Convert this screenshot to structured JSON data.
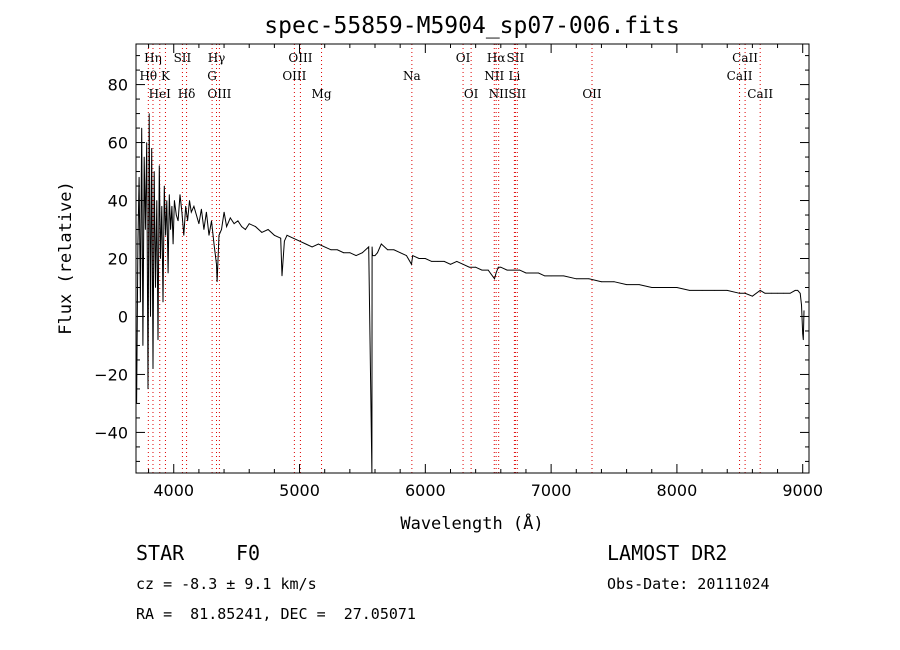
{
  "chart_data": {
    "type": "line",
    "title": "spec-55859-M5904_sp07-006.fits",
    "xlabel": "Wavelength (Å)",
    "ylabel": "Flux (relative)",
    "xlim": [
      3700,
      9050
    ],
    "ylim": [
      -54,
      94
    ],
    "xticks": [
      4000,
      5000,
      6000,
      7000,
      8000,
      9000
    ],
    "yticks": [
      -40,
      -20,
      0,
      20,
      40,
      60,
      80
    ],
    "grid": false,
    "series": [
      {
        "x": [
          3705,
          3715,
          3725,
          3735,
          3745,
          3755,
          3765,
          3775,
          3785,
          3795,
          3805,
          3815,
          3825,
          3835,
          3845,
          3855,
          3865,
          3875,
          3885,
          3895,
          3905,
          3915,
          3925,
          3935,
          3945,
          3955,
          3965,
          3975,
          3985,
          3995,
          4005,
          4020,
          4035,
          4050,
          4065,
          4080,
          4095,
          4110,
          4125,
          4140,
          4160,
          4180,
          4200,
          4220,
          4240,
          4260,
          4280,
          4300,
          4320,
          4340,
          4345,
          4360,
          4380,
          4400,
          4420,
          4450,
          4480,
          4510,
          4540,
          4570,
          4600,
          4650,
          4700,
          4750,
          4800,
          4850,
          4861,
          4880,
          4900,
          4950,
          5000,
          5050,
          5100,
          5150,
          5200,
          5250,
          5300,
          5350,
          5400,
          5450,
          5500,
          5550,
          5575,
          5577,
          5580,
          5600,
          5620,
          5650,
          5700,
          5750,
          5800,
          5850,
          5890,
          5900,
          5950,
          6000,
          6050,
          6100,
          6150,
          6200,
          6250,
          6300,
          6350,
          6400,
          6450,
          6500,
          6550,
          6563,
          6580,
          6600,
          6650,
          6700,
          6750,
          6800,
          6850,
          6900,
          6950,
          7000,
          7100,
          7200,
          7300,
          7400,
          7500,
          7600,
          7700,
          7800,
          7900,
          8000,
          8100,
          8200,
          8300,
          8400,
          8498,
          8542,
          8600,
          8662,
          8700,
          8750,
          8800,
          8850,
          8900,
          8940,
          8960,
          8980,
          8990,
          9000,
          9005,
          9010
        ],
        "values": [
          -30,
          25,
          48,
          5,
          65,
          -10,
          55,
          30,
          60,
          -25,
          70,
          0,
          58,
          -18,
          50,
          10,
          40,
          -8,
          52,
          20,
          38,
          5,
          45,
          28,
          40,
          15,
          42,
          30,
          38,
          25,
          40,
          35,
          33,
          42,
          36,
          28,
          38,
          33,
          40,
          36,
          38,
          35,
          32,
          37,
          30,
          36,
          28,
          33,
          25,
          18,
          12,
          28,
          30,
          36,
          31,
          34,
          32,
          33,
          31,
          30,
          32,
          31,
          29,
          30,
          28,
          27,
          14,
          26,
          28,
          27,
          26,
          25,
          24,
          25,
          24,
          23,
          23,
          22,
          22,
          21,
          22,
          24,
          -55,
          24,
          21,
          21,
          22,
          25,
          23,
          23,
          22,
          21,
          18,
          21,
          20,
          20,
          19,
          19,
          19,
          18,
          19,
          18,
          17,
          17,
          16,
          16,
          13,
          15,
          17,
          17,
          16,
          16,
          16,
          15,
          15,
          15,
          14,
          14,
          14,
          13,
          13,
          12,
          12,
          11,
          11,
          10,
          10,
          10,
          9,
          9,
          9,
          9,
          8,
          8,
          7,
          9,
          8,
          8,
          8,
          8,
          8,
          9,
          9,
          8,
          4,
          -6,
          -8,
          2
        ]
      }
    ],
    "line_markers": [
      {
        "label": "Hη",
        "x": 3835,
        "row": 1
      },
      {
        "label": "Hθ",
        "x": 3798,
        "row": 2
      },
      {
        "label": "HeI",
        "x": 3889,
        "row": 3
      },
      {
        "label": "K",
        "x": 3934,
        "row": 2
      },
      {
        "label": "SII",
        "x": 4069,
        "row": 1
      },
      {
        "label": "Hδ",
        "x": 4102,
        "row": 3
      },
      {
        "label": "Hγ",
        "x": 4340,
        "row": 1
      },
      {
        "label": "G",
        "x": 4305,
        "row": 2
      },
      {
        "label": "OIII",
        "x": 4363,
        "row": 3
      },
      {
        "label": "OIII",
        "x": 5007,
        "row": 1
      },
      {
        "label": "OIII",
        "x": 4959,
        "row": 2
      },
      {
        "label": "Mg",
        "x": 5175,
        "row": 3
      },
      {
        "label": "Na",
        "x": 5893,
        "row": 2
      },
      {
        "label": "OI",
        "x": 6300,
        "row": 1
      },
      {
        "label": "OI",
        "x": 6364,
        "row": 3
      },
      {
        "label": "Hα",
        "x": 6563,
        "row": 1
      },
      {
        "label": "SII",
        "x": 6716,
        "row": 1
      },
      {
        "label": "NII",
        "x": 6548,
        "row": 2
      },
      {
        "label": "Li",
        "x": 6708,
        "row": 2
      },
      {
        "label": "NII",
        "x": 6583,
        "row": 3
      },
      {
        "label": "SII",
        "x": 6731,
        "row": 3
      },
      {
        "label": "OII",
        "x": 7325,
        "row": 3
      },
      {
        "label": "CaII",
        "x": 8542,
        "row": 1
      },
      {
        "label": "CaII",
        "x": 8498,
        "row": 2
      },
      {
        "label": "CaII",
        "x": 8662,
        "row": 3
      }
    ],
    "colors": {
      "spectrum": "#000000",
      "markers": "#dd0000"
    }
  },
  "info": {
    "object_class": "STAR",
    "subclass": "F0",
    "survey": "LAMOST DR2",
    "redshift": "cz = -8.3 ± 9.1 km/s",
    "obs_date": "Obs-Date: 20111024",
    "coordinates": "RA =  81.85241, DEC =  27.05071"
  }
}
